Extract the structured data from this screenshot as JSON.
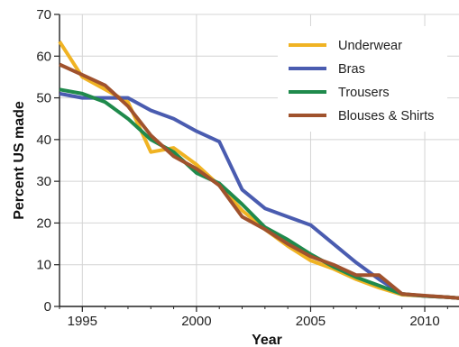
{
  "chart_data": {
    "type": "line",
    "xlabel": "Year",
    "ylabel": "Percent US made",
    "xlim": [
      1994,
      2011.5
    ],
    "ylim": [
      0,
      70
    ],
    "x_ticks": [
      1995,
      2000,
      2005,
      2010
    ],
    "y_ticks": [
      0,
      10,
      20,
      30,
      40,
      50,
      60,
      70
    ],
    "grid": true,
    "legend_position": "top-right",
    "series": [
      {
        "name": "Underwear",
        "color": "#f0b323",
        "x": [
          1994,
          1995,
          1996,
          1997,
          1998,
          1999,
          2000,
          2001,
          2002,
          2003,
          2004,
          2005,
          2006,
          2007,
          2008,
          2009,
          2010,
          2011,
          2011.5
        ],
        "y": [
          63.5,
          55,
          52,
          49,
          37,
          38,
          34,
          29,
          23,
          18.5,
          14.5,
          11,
          9,
          6.5,
          4.5,
          2.8,
          2.5,
          2.2,
          2
        ]
      },
      {
        "name": "Bras",
        "color": "#4a5cb0",
        "x": [
          1994,
          1995,
          1996,
          1997,
          1998,
          1999,
          2000,
          2001,
          2002,
          2003,
          2004,
          2005,
          2006,
          2007,
          2008,
          2009,
          2010,
          2011,
          2011.5
        ],
        "y": [
          51,
          50,
          50,
          50,
          47,
          45,
          42,
          39.5,
          28,
          23.5,
          21.5,
          19.5,
          15,
          10.5,
          6.5,
          3,
          2.5,
          2.2,
          2
        ]
      },
      {
        "name": "Trousers",
        "color": "#1f8a4c",
        "x": [
          1994,
          1995,
          1996,
          1997,
          1998,
          1999,
          2000,
          2001,
          2002,
          2003,
          2004,
          2005,
          2006,
          2007,
          2008,
          2009,
          2010,
          2011,
          2011.5
        ],
        "y": [
          52,
          51,
          49,
          45,
          40,
          37,
          32,
          29.5,
          24.5,
          19,
          16,
          12.5,
          9.5,
          7,
          5,
          3,
          2.5,
          2.2,
          2
        ]
      },
      {
        "name": "Blouses & Shirts",
        "color": "#a0522d",
        "x": [
          1994,
          1995,
          1996,
          1997,
          1998,
          1999,
          2000,
          2001,
          2002,
          2003,
          2004,
          2005,
          2006,
          2007,
          2008,
          2009,
          2010,
          2011,
          2011.5
        ],
        "y": [
          58,
          55.5,
          53,
          48,
          41,
          36,
          33,
          29,
          21.5,
          18.5,
          15,
          12,
          10,
          7.5,
          7.5,
          3,
          2.6,
          2.2,
          2
        ]
      }
    ]
  }
}
